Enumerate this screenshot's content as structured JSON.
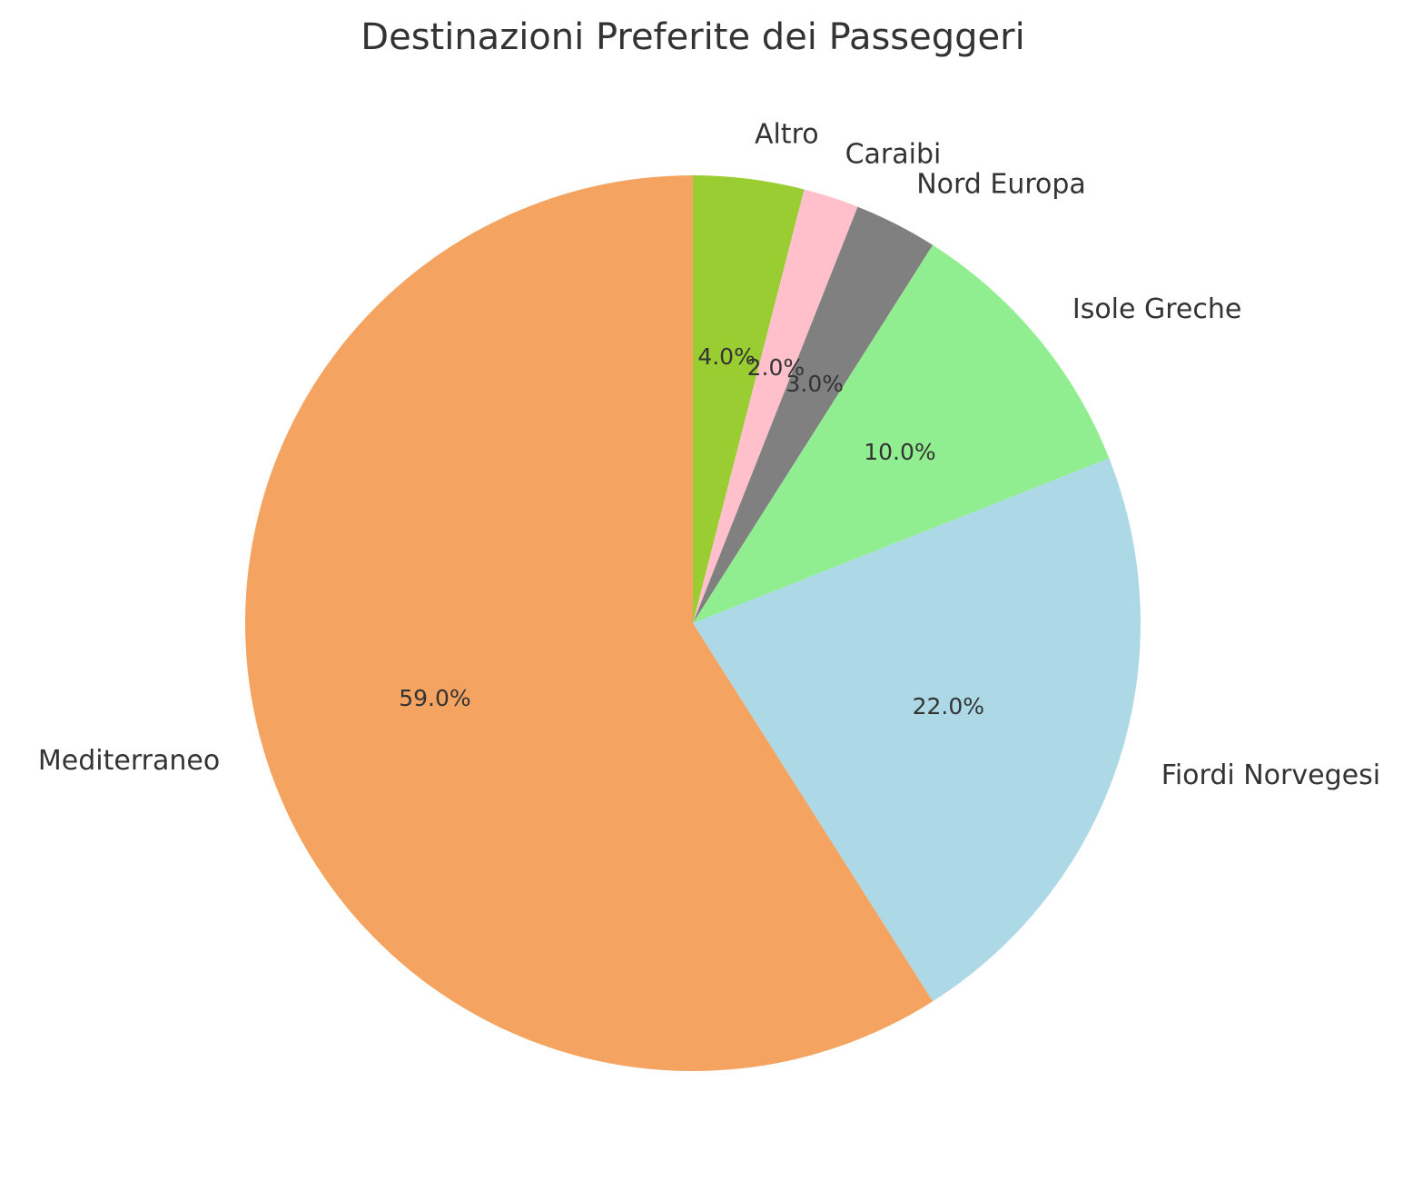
{
  "chart_data": {
    "type": "pie",
    "title": "Destinazioni Preferite dei Passeggeri",
    "start_angle_deg": 90,
    "direction": "clockwise",
    "slices": [
      {
        "label": "Altro",
        "value": 4.0,
        "pct_label": "4.0%",
        "color": "#9ACD32"
      },
      {
        "label": "Caraibi",
        "value": 2.0,
        "pct_label": "2.0%",
        "color": "#FFC0CB"
      },
      {
        "label": "Nord Europa",
        "value": 3.0,
        "pct_label": "3.0%",
        "color": "#808080"
      },
      {
        "label": "Isole Greche",
        "value": 10.0,
        "pct_label": "10.0%",
        "color": "#90EE90"
      },
      {
        "label": "Fiordi Norvegesi",
        "value": 22.0,
        "pct_label": "22.0%",
        "color": "#ADD8E6"
      },
      {
        "label": "Mediterraneo",
        "value": 59.0,
        "pct_label": "59.0%",
        "color": "#F4A460"
      }
    ]
  }
}
